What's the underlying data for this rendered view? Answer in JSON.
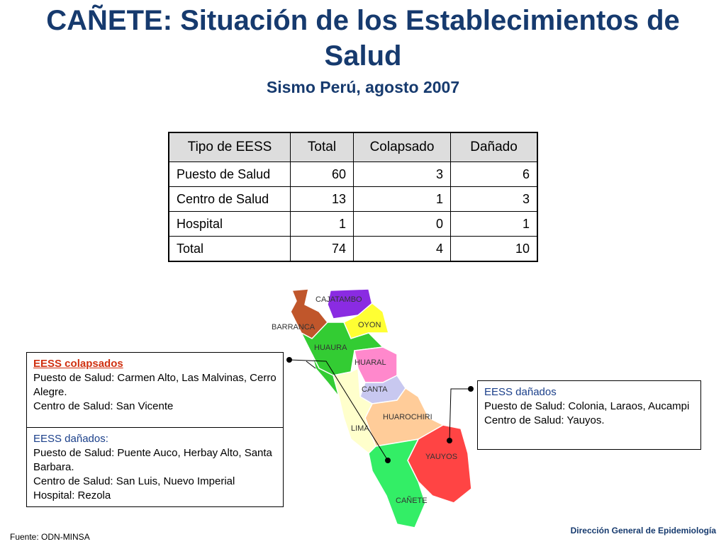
{
  "header": {
    "title": "CAÑETE: Situación de los Establecimientos de Salud",
    "subtitle": "Sismo Perú, agosto 2007"
  },
  "table": {
    "columns": [
      "Tipo de EESS",
      "Total",
      "Colapsado",
      "Dañado"
    ],
    "rows": [
      [
        "Puesto de Salud",
        60,
        3,
        6
      ],
      [
        "Centro de Salud",
        13,
        1,
        3
      ],
      [
        "Hospital",
        1,
        0,
        1
      ],
      [
        "Total",
        74,
        4,
        10
      ]
    ]
  },
  "map": {
    "labels": [
      "CAJATAMBO",
      "BARRANCA",
      "OYON",
      "HUAURA",
      "HUARAL",
      "CANTA",
      "HUAROCHIRI",
      "LIMA",
      "YAUYOS",
      "CAÑETE"
    ]
  },
  "boxes": [
    {
      "heading": "EESS colapsados",
      "lines": [
        "Puesto de Salud: Carmen Alto, Las Malvinas, Cerro Alegre.",
        "Centro de Salud: San Vicente"
      ]
    },
    {
      "heading": "EESS dañados:",
      "lines": [
        "Puesto de Salud: Puente Auco, Herbay Alto, Santa Barbara.",
        "Centro de Salud: San Luis, Nuevo Imperial",
        "Hospital: Rezola"
      ]
    },
    {
      "heading": "EESS dañados",
      "lines": [
        "Puesto de Salud: Colonia, Laraos, Aucampi",
        "Centro de Salud: Yauyos."
      ]
    }
  ],
  "footer": {
    "source": "Fuente: ODN-MINSA",
    "org": "Dirección General de Epidemiología"
  }
}
